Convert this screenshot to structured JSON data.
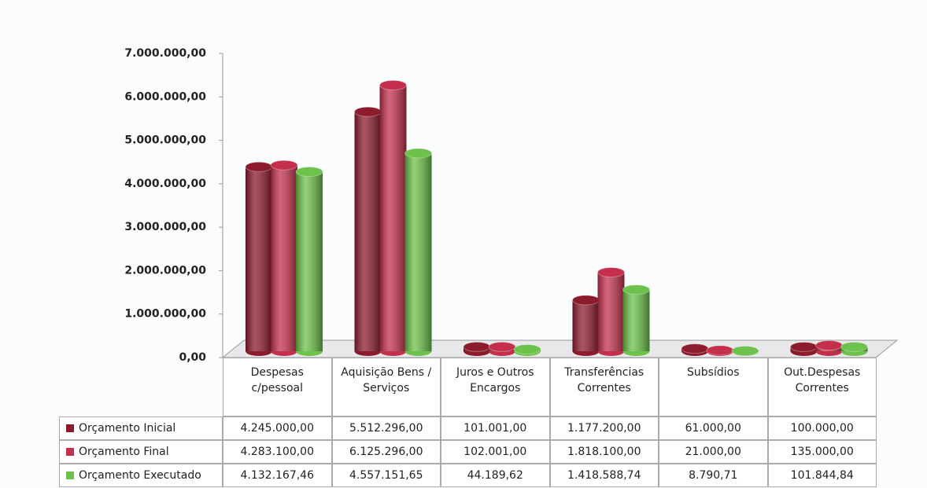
{
  "chart_data": {
    "type": "bar3d",
    "categories": [
      "Despesas c/pessoal",
      "Aquisição Bens / Serviços",
      "Juros e Outros Encargos",
      "Transferências Correntes",
      "Subsídios",
      "Out.Despesas Correntes"
    ],
    "series": [
      {
        "name": "Orçamento Inicial",
        "color": "#8c1c2c",
        "values": [
          4245000,
          5512296,
          101001,
          1177200,
          61000,
          100000
        ],
        "value_labels": [
          "4.245.000,00",
          "5.512.296,00",
          "101.001,00",
          "1.177.200,00",
          "61.000,00",
          "100.000,00"
        ]
      },
      {
        "name": "Orçamento Final",
        "color": "#c4304c",
        "values": [
          4283100,
          6125296,
          102001,
          1818100,
          21000,
          135000
        ],
        "value_labels": [
          "4.283.100,00",
          "6.125.296,00",
          "102.001,00",
          "1.818.100,00",
          "21.000,00",
          "135.000,00"
        ]
      },
      {
        "name": "Orçamento Executado",
        "color": "#6cc24a",
        "values": [
          4132167.46,
          4557151.65,
          44189.62,
          1418588.74,
          8790.71,
          101844.84
        ],
        "value_labels": [
          "4.132.167,46",
          "4.557.151,65",
          "44.189,62",
          "1.418.588,74",
          "8.790,71",
          "101.844,84"
        ]
      }
    ],
    "ylim": [
      0,
      7000000
    ],
    "yticks": [
      {
        "value": 0,
        "label": "0,00"
      },
      {
        "value": 1000000,
        "label": "1.000.000,00"
      },
      {
        "value": 2000000,
        "label": "2.000.000,00"
      },
      {
        "value": 3000000,
        "label": "3.000.000,00"
      },
      {
        "value": 4000000,
        "label": "4.000.000,00"
      },
      {
        "value": 5000000,
        "label": "5.000.000,00"
      },
      {
        "value": 6000000,
        "label": "6.000.000,00"
      },
      {
        "value": 7000000,
        "label": "7.000.000,00"
      }
    ],
    "grid": false
  }
}
